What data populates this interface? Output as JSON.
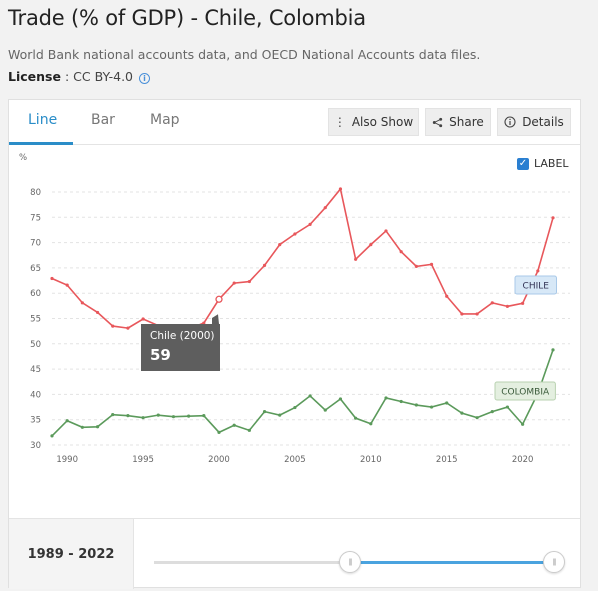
{
  "page": {
    "title": "Trade (% of GDP) - Chile, Colombia",
    "source": "World Bank national accounts data, and OECD National Accounts data files.",
    "license_label": "License",
    "license_sep": " : ",
    "license_value": "CC BY-4.0"
  },
  "tabs": [
    {
      "label": "Line",
      "active": true
    },
    {
      "label": "Bar",
      "active": false
    },
    {
      "label": "Map",
      "active": false
    }
  ],
  "toolbar": {
    "also_show": "Also Show",
    "share": "Share",
    "details": "Details"
  },
  "label_toggle": {
    "text": "LABEL",
    "checked": true
  },
  "tooltip": {
    "title": "Chile (2000)",
    "value": "59"
  },
  "range": {
    "text": "1989 - 2022",
    "start_fraction": 0.49,
    "end_fraction": 1.0
  },
  "colors": {
    "chile": "#e8575b",
    "colombia": "#5b9a5b",
    "accent": "#2a8dc8"
  },
  "chart_data": {
    "type": "line",
    "ylabel": "%",
    "ylim": [
      30,
      80
    ],
    "xlim": [
      1989,
      2022
    ],
    "y_ticks": [
      30,
      35,
      40,
      45,
      50,
      55,
      60,
      65,
      70,
      75,
      80
    ],
    "x_ticks": [
      1990,
      1995,
      2000,
      2005,
      2010,
      2015,
      2020
    ],
    "grid": true,
    "x": [
      1989,
      1990,
      1991,
      1992,
      1993,
      1994,
      1995,
      1996,
      1997,
      1998,
      1999,
      2000,
      2001,
      2002,
      2003,
      2004,
      2005,
      2006,
      2007,
      2008,
      2009,
      2010,
      2011,
      2012,
      2013,
      2014,
      2015,
      2016,
      2017,
      2018,
      2019,
      2020,
      2021,
      2022
    ],
    "series": [
      {
        "name": "CHILE",
        "color": "#e8575b",
        "values": [
          62.9,
          61.6,
          58.1,
          56.2,
          53.5,
          53.1,
          54.9,
          53.6,
          53.1,
          52.9,
          54.1,
          58.8,
          62.0,
          62.3,
          65.5,
          69.6,
          71.7,
          73.6,
          76.9,
          80.6,
          66.7,
          69.6,
          72.3,
          68.2,
          65.3,
          65.7,
          59.4,
          55.9,
          55.9,
          58.1,
          57.4,
          58.0,
          64.4,
          74.9
        ]
      },
      {
        "name": "COLOMBIA",
        "color": "#5b9a5b",
        "values": [
          31.8,
          34.8,
          33.5,
          33.6,
          36.0,
          35.8,
          35.4,
          35.9,
          35.6,
          35.7,
          35.8,
          32.5,
          33.9,
          32.9,
          36.6,
          35.9,
          37.4,
          39.7,
          36.9,
          39.1,
          35.3,
          34.2,
          39.3,
          38.6,
          37.9,
          37.5,
          38.3,
          36.3,
          35.4,
          36.6,
          37.5,
          34.1,
          40.2,
          48.8
        ]
      }
    ]
  }
}
